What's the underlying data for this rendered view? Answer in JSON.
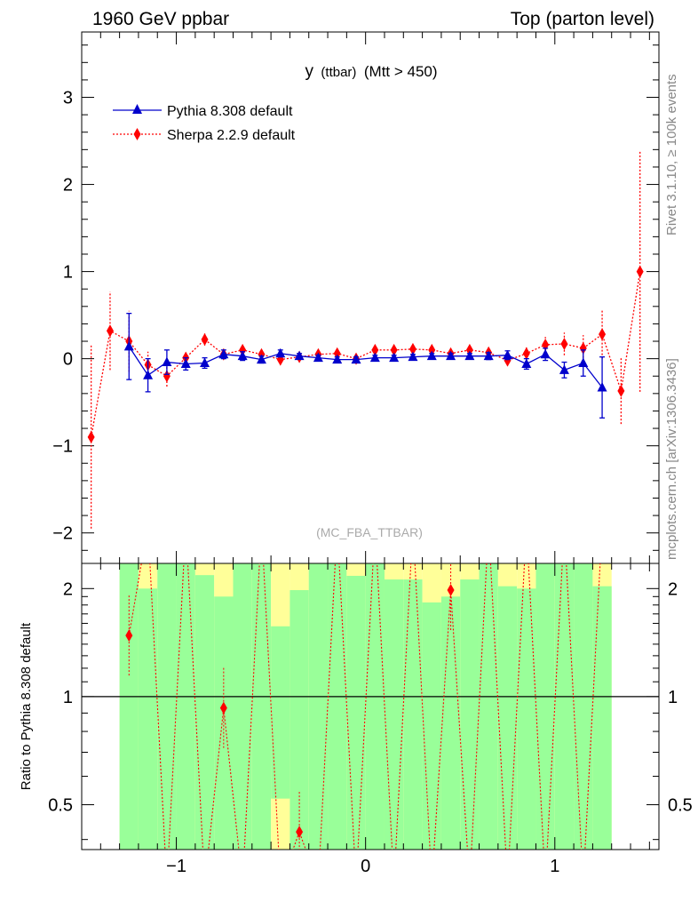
{
  "header": {
    "left": "1960 GeV ppbar",
    "right": "Top (parton level)"
  },
  "side_labels": {
    "rivet": "Rivet 3.1.10, ≥ 100k events",
    "mcplots": "mcplots.cern.ch [arXiv:1306.3436]"
  },
  "chart_data": {
    "type": "line",
    "title": "y (ttbar) (Mtt > 450)",
    "title_main": "y",
    "title_small": "(ttbar)",
    "title_tail": "(Mtt > 450)",
    "watermark": "(MC_FBA_TTBAR)",
    "xlim": [
      -1.5,
      1.55
    ],
    "main_ylim": [
      -2.35,
      3.75
    ],
    "main_yticks": [
      -2,
      -1,
      0,
      1,
      2,
      3
    ],
    "main_ytick_labels": [
      "−2",
      "−1",
      "0",
      "1",
      "2",
      "3"
    ],
    "xticks": [
      -1,
      0,
      1
    ],
    "xtick_labels": [
      "−1",
      "0",
      "1"
    ],
    "ratio_ylabel": "Ratio to Pythia 8.308 default",
    "ratio_ylim": [
      0.375,
      2.35
    ],
    "ratio_yticks": [
      0.5,
      1,
      2
    ],
    "ratio_ytick_labels": [
      "0.5",
      "1",
      "2"
    ],
    "ratio_scale": "log",
    "legend_position": "top-left",
    "series": [
      {
        "name": "Pythia 8.308 default",
        "color": "#0000cc",
        "marker": "triangle",
        "line": "solid",
        "x": [
          -1.25,
          -1.15,
          -1.05,
          -0.95,
          -0.85,
          -0.75,
          -0.65,
          -0.55,
          -0.45,
          -0.35,
          -0.25,
          -0.15,
          -0.05,
          0.05,
          0.15,
          0.25,
          0.35,
          0.45,
          0.55,
          0.65,
          0.75,
          0.85,
          0.95,
          1.05,
          1.15,
          1.25
        ],
        "y": [
          0.14,
          -0.19,
          -0.04,
          -0.06,
          -0.05,
          0.05,
          0.03,
          -0.01,
          0.06,
          0.03,
          0.01,
          -0.01,
          -0.01,
          0.01,
          0.01,
          0.02,
          0.03,
          0.03,
          0.03,
          0.03,
          0.04,
          -0.06,
          0.05,
          -0.13,
          -0.05,
          -0.33
        ],
        "yerr": [
          0.38,
          0.19,
          0.14,
          0.07,
          0.06,
          0.05,
          0.05,
          0.04,
          0.04,
          0.03,
          0.03,
          0.03,
          0.03,
          0.03,
          0.03,
          0.03,
          0.03,
          0.03,
          0.03,
          0.04,
          0.05,
          0.06,
          0.07,
          0.09,
          0.15,
          0.35
        ]
      },
      {
        "name": "Sherpa 2.2.9 default",
        "color": "#ff0000",
        "marker": "diamond",
        "line": "dotted",
        "x": [
          -1.45,
          -1.35,
          -1.25,
          -1.15,
          -1.05,
          -0.95,
          -0.85,
          -0.75,
          -0.65,
          -0.55,
          -0.45,
          -0.35,
          -0.25,
          -0.15,
          -0.05,
          0.05,
          0.15,
          0.25,
          0.35,
          0.45,
          0.55,
          0.65,
          0.75,
          0.85,
          0.95,
          1.05,
          1.15,
          1.25,
          1.35,
          1.45
        ],
        "y": [
          -0.9,
          0.32,
          0.2,
          -0.07,
          -0.2,
          0.01,
          0.22,
          0.05,
          0.1,
          0.05,
          -0.01,
          0.02,
          0.05,
          0.06,
          0.0,
          0.1,
          0.1,
          0.11,
          0.1,
          0.06,
          0.1,
          0.07,
          -0.02,
          0.06,
          0.16,
          0.17,
          0.12,
          0.28,
          -0.37,
          1.0
        ],
        "yerr": [
          1.05,
          0.45,
          0.35,
          0.15,
          0.12,
          0.08,
          0.07,
          0.06,
          0.05,
          0.05,
          0.04,
          0.04,
          0.04,
          0.04,
          0.04,
          0.04,
          0.04,
          0.04,
          0.04,
          0.04,
          0.04,
          0.05,
          0.06,
          0.07,
          0.09,
          0.13,
          0.15,
          0.28,
          0.38,
          1.38
        ]
      }
    ],
    "ratio_band": {
      "x_low": [
        -1.3,
        -1.2,
        -1.1,
        -1.0,
        -0.9,
        -0.8,
        -0.7,
        -0.6,
        -0.5,
        -0.4,
        -0.3,
        -0.2,
        -0.1,
        0.0,
        0.1,
        0.2,
        0.3,
        0.4,
        0.5,
        0.6,
        0.7,
        0.8,
        0.9,
        1.0,
        1.1,
        1.2
      ],
      "x_high": [
        -1.2,
        -1.1,
        -1.0,
        -0.9,
        -0.8,
        -0.7,
        -0.6,
        -0.5,
        -0.4,
        -0.3,
        -0.2,
        -0.1,
        0.0,
        0.1,
        0.2,
        0.3,
        0.4,
        0.5,
        0.6,
        0.7,
        0.8,
        0.9,
        1.0,
        1.1,
        1.2,
        1.3
      ],
      "yellow_low": [
        0.375,
        0.375,
        0.375,
        0.375,
        0.375,
        0.375,
        0.375,
        0.375,
        0.375,
        0.375,
        0.375,
        0.375,
        0.375,
        0.375,
        0.375,
        0.375,
        0.375,
        0.375,
        0.375,
        0.375,
        0.375,
        0.375,
        0.375,
        0.375,
        0.375,
        0.375
      ],
      "yellow_high": [
        2.35,
        2.35,
        2.35,
        2.35,
        2.35,
        2.35,
        2.35,
        2.35,
        2.35,
        2.35,
        2.35,
        2.35,
        2.35,
        2.35,
        2.35,
        2.35,
        2.35,
        2.35,
        2.35,
        2.35,
        2.35,
        2.35,
        2.35,
        2.35,
        2.35,
        2.35
      ],
      "green_low": [
        0.375,
        0.375,
        0.375,
        0.375,
        0.375,
        0.375,
        0.375,
        0.375,
        0.52,
        0.375,
        0.375,
        0.375,
        0.375,
        0.375,
        0.375,
        0.375,
        0.375,
        0.375,
        0.375,
        0.375,
        0.375,
        0.375,
        0.375,
        0.375,
        0.375,
        0.375
      ],
      "green_high": [
        2.35,
        2.0,
        2.35,
        2.35,
        2.18,
        1.9,
        2.35,
        2.35,
        1.57,
        1.98,
        2.35,
        2.35,
        2.17,
        2.35,
        2.12,
        2.12,
        1.83,
        1.9,
        2.12,
        2.35,
        2.03,
        2.0,
        2.35,
        2.35,
        2.35,
        2.03
      ]
    },
    "ratio_series": {
      "name": "Sherpa 2.2.9 default",
      "x": [
        -1.25,
        -0.75,
        -0.35,
        0.45
      ],
      "y": [
        1.48,
        0.93,
        0.42,
        1.98
      ]
    }
  }
}
